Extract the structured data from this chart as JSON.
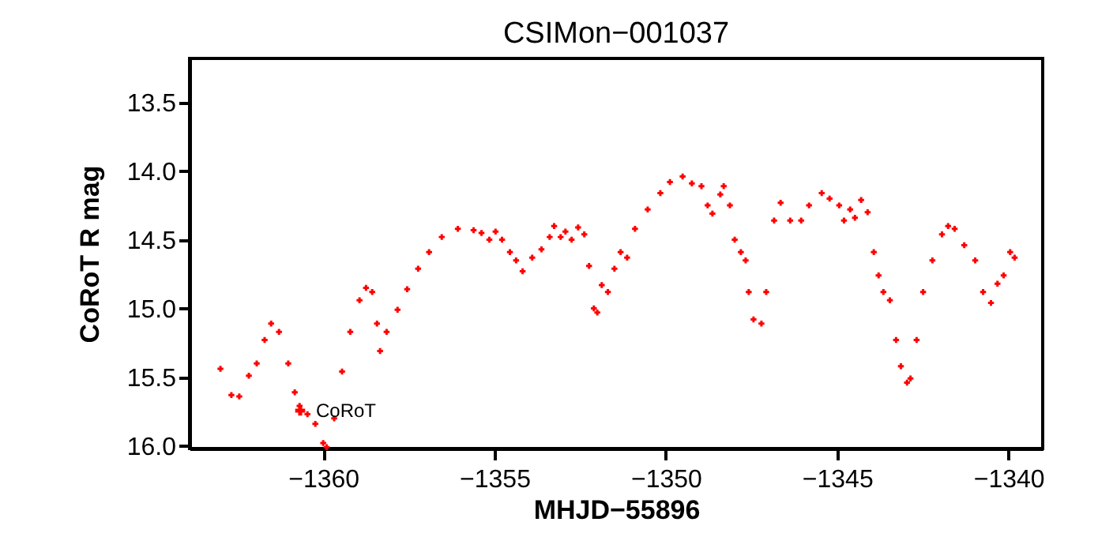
{
  "chart_data": {
    "type": "scatter",
    "title": "CSIMon−001037",
    "xlabel": "MHJD−55896",
    "ylabel": "CoRoT R mag",
    "xlim": [
      -1363.9,
      -1339.0
    ],
    "ylim": [
      16.02,
      13.18
    ],
    "xticks": [
      {
        "value": -1360,
        "label": "−1360"
      },
      {
        "value": -1355,
        "label": "−1355"
      },
      {
        "value": -1350,
        "label": "−1350"
      },
      {
        "value": -1345,
        "label": "−1345"
      },
      {
        "value": -1340,
        "label": "−1340"
      }
    ],
    "yticks": [
      {
        "value": 13.5,
        "label": "13.5"
      },
      {
        "value": 14.0,
        "label": "14.0"
      },
      {
        "value": 14.5,
        "label": "14.5"
      },
      {
        "value": 15.0,
        "label": "15.0"
      },
      {
        "value": 15.5,
        "label": "15.5"
      },
      {
        "value": 16.0,
        "label": "16.0"
      }
    ],
    "marker": "cross",
    "legend": "bottom left",
    "series": [
      {
        "name": "CoRoT",
        "color": "#ff0000",
        "x": [
          -1363.0,
          -1362.68,
          -1362.45,
          -1362.17,
          -1361.94,
          -1361.71,
          -1361.52,
          -1361.29,
          -1361.02,
          -1360.83,
          -1360.69,
          -1360.46,
          -1360.23,
          -1360.0,
          -1359.9,
          -1359.68,
          -1359.45,
          -1359.21,
          -1358.94,
          -1358.75,
          -1358.57,
          -1358.43,
          -1358.34,
          -1358.15,
          -1357.83,
          -1357.55,
          -1357.23,
          -1356.91,
          -1356.54,
          -1356.07,
          -1355.61,
          -1355.38,
          -1355.15,
          -1354.97,
          -1354.78,
          -1354.55,
          -1354.37,
          -1354.18,
          -1353.9,
          -1353.63,
          -1353.39,
          -1353.26,
          -1353.07,
          -1352.93,
          -1352.75,
          -1352.56,
          -1352.38,
          -1352.24,
          -1352.1,
          -1352.0,
          -1351.87,
          -1351.69,
          -1351.5,
          -1351.32,
          -1351.13,
          -1350.9,
          -1350.53,
          -1350.16,
          -1349.88,
          -1349.51,
          -1349.24,
          -1348.96,
          -1348.78,
          -1348.64,
          -1348.41,
          -1348.31,
          -1348.13,
          -1347.99,
          -1347.81,
          -1347.67,
          -1347.58,
          -1347.44,
          -1347.21,
          -1347.07,
          -1346.84,
          -1346.65,
          -1346.37,
          -1346.05,
          -1345.82,
          -1345.45,
          -1345.22,
          -1344.94,
          -1344.8,
          -1344.62,
          -1344.48,
          -1344.3,
          -1344.11,
          -1343.93,
          -1343.79,
          -1343.65,
          -1343.46,
          -1343.28,
          -1343.14,
          -1342.96,
          -1342.86,
          -1342.68,
          -1342.49,
          -1342.22,
          -1341.94,
          -1341.76,
          -1341.57,
          -1341.29,
          -1340.97,
          -1340.74,
          -1340.51,
          -1340.32,
          -1340.14,
          -1339.95,
          -1339.82
        ],
        "values": [
          15.44,
          15.63,
          15.64,
          15.49,
          15.4,
          15.23,
          15.11,
          15.17,
          15.4,
          15.61,
          15.71,
          15.77,
          15.84,
          15.98,
          16.01,
          15.8,
          15.46,
          15.17,
          14.94,
          14.85,
          14.88,
          15.11,
          15.31,
          15.17,
          15.01,
          14.86,
          14.71,
          14.59,
          14.48,
          14.42,
          14.43,
          14.45,
          14.5,
          14.44,
          14.5,
          14.59,
          14.65,
          14.73,
          14.63,
          14.57,
          14.48,
          14.4,
          14.48,
          14.44,
          14.5,
          14.41,
          14.46,
          14.69,
          15.0,
          15.03,
          14.83,
          14.88,
          14.71,
          14.59,
          14.63,
          14.42,
          14.28,
          14.16,
          14.08,
          14.04,
          14.09,
          14.11,
          14.25,
          14.31,
          14.17,
          14.11,
          14.25,
          14.5,
          14.59,
          14.65,
          14.88,
          15.08,
          15.11,
          14.88,
          14.36,
          14.23,
          14.36,
          14.36,
          14.25,
          14.16,
          14.2,
          14.25,
          14.36,
          14.28,
          14.34,
          14.21,
          14.3,
          14.59,
          14.76,
          14.88,
          14.94,
          15.23,
          15.42,
          15.54,
          15.51,
          15.23,
          14.88,
          14.65,
          14.46,
          14.4,
          14.42,
          14.54,
          14.65,
          14.88,
          14.96,
          14.82,
          14.76,
          14.59,
          14.63
        ]
      }
    ]
  }
}
